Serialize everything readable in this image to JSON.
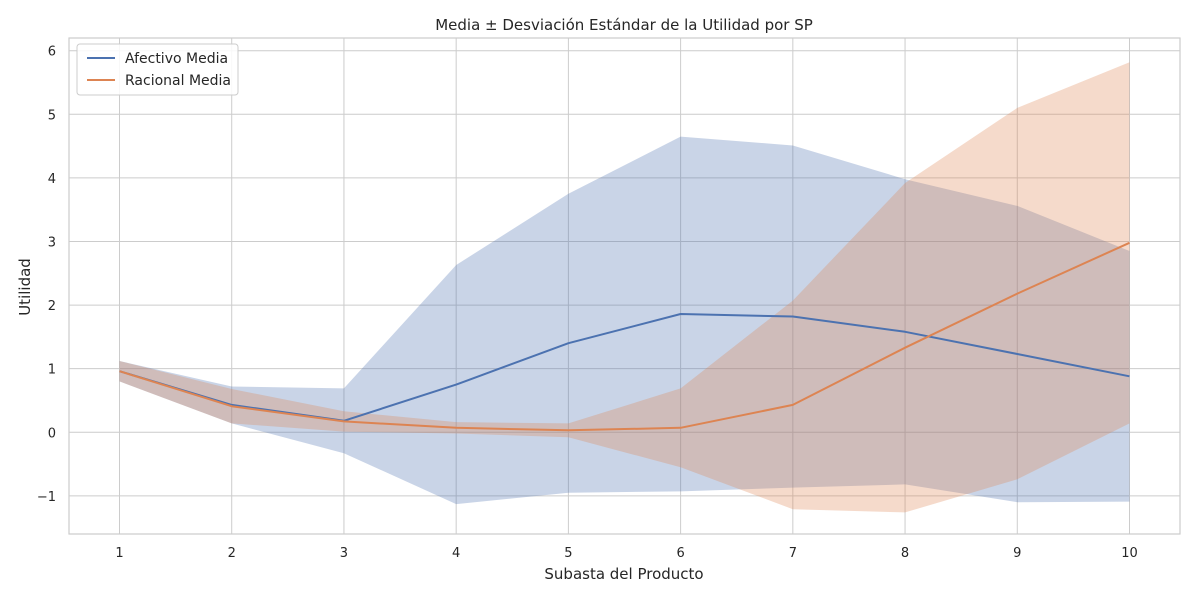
{
  "chart_data": {
    "type": "line",
    "title": "Media ± Desviación Estándar de la Utilidad por SP",
    "xlabel": "Subasta del Producto",
    "ylabel": "Utilidad",
    "x": [
      1,
      2,
      3,
      4,
      5,
      6,
      7,
      8,
      9,
      10
    ],
    "x_ticks": [
      "1",
      "2",
      "3",
      "4",
      "5",
      "6",
      "7",
      "8",
      "9",
      "10"
    ],
    "xlim": [
      0.55,
      10.45
    ],
    "y_ticks": [
      -1,
      0,
      1,
      2,
      3,
      4,
      5,
      6
    ],
    "y_tick_labels": [
      "−1",
      "0",
      "1",
      "2",
      "3",
      "4",
      "5",
      "6"
    ],
    "ylim": [
      -1.6,
      6.2
    ],
    "grid": true,
    "legend_position": "top-left",
    "series": [
      {
        "name": "Afectivo Media",
        "color": "#4c72b0",
        "band_color": "#4c72b0",
        "mean": [
          0.96,
          0.43,
          0.18,
          0.75,
          1.4,
          1.86,
          1.82,
          1.58,
          1.23,
          0.88
        ],
        "upper": [
          1.12,
          0.72,
          0.69,
          2.63,
          3.75,
          4.65,
          4.51,
          3.98,
          3.56,
          2.85
        ],
        "lower": [
          0.8,
          0.14,
          -0.33,
          -1.13,
          -0.95,
          -0.93,
          -0.87,
          -0.82,
          -1.1,
          -1.09
        ]
      },
      {
        "name": "Racional Media",
        "color": "#dd8452",
        "band_color": "#dd8452",
        "mean": [
          0.96,
          0.41,
          0.17,
          0.07,
          0.03,
          0.07,
          0.43,
          1.33,
          2.18,
          2.98
        ],
        "upper": [
          1.12,
          0.68,
          0.33,
          0.16,
          0.14,
          0.69,
          2.07,
          3.92,
          5.1,
          5.82
        ],
        "lower": [
          0.8,
          0.14,
          0.01,
          -0.02,
          -0.08,
          -0.55,
          -1.21,
          -1.26,
          -0.74,
          0.14
        ]
      }
    ]
  }
}
